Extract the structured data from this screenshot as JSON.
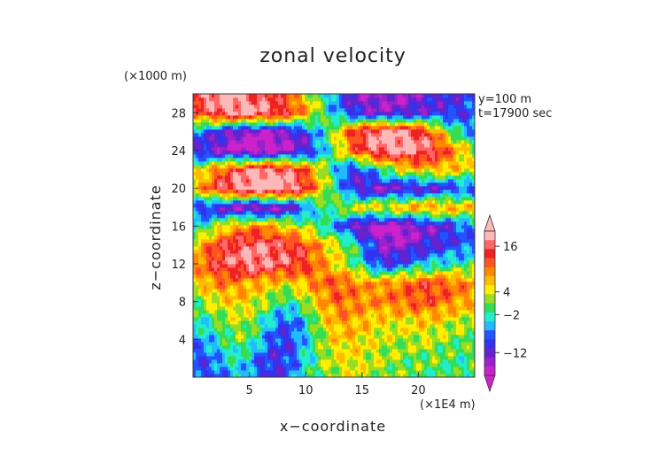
{
  "chart_data": {
    "type": "heatmap",
    "title": "zonal velocity",
    "xlabel": "x−coordinate",
    "ylabel": "z−coordinate",
    "x_unit": "(×1E4 m)",
    "y_unit": "(×1000 m)",
    "annotations": [
      "y=100  m",
      "t=17900  sec"
    ],
    "xlim": [
      0,
      25
    ],
    "ylim": [
      0,
      30
    ],
    "x_ticks": [
      5,
      10,
      15,
      20
    ],
    "y_ticks": [
      4,
      8,
      12,
      16,
      20,
      24,
      28
    ],
    "colorbar": {
      "tick_labels": [
        "16",
        "4",
        "−2",
        "−12"
      ],
      "tick_values": [
        16,
        4,
        -2,
        -12
      ],
      "extend": "both",
      "colors": [
        "#cc22cc",
        "#9922cc",
        "#6622cc",
        "#3333ee",
        "#2255ff",
        "#22bbff",
        "#22eecc",
        "#33dd55",
        "#99dd22",
        "#ffee00",
        "#ffbb00",
        "#ff8800",
        "#ff5522",
        "#ee2222",
        "#ff6666",
        "#ffb8b8"
      ]
    },
    "z_by_height": [
      {
        "z": 0,
        "row": [
          -9,
          -9,
          -8,
          -6,
          -4,
          -6,
          -9,
          -10,
          -9,
          -6,
          -3,
          0,
          2,
          3,
          4,
          3,
          2,
          1,
          1,
          0,
          0,
          0,
          0,
          -1,
          -1,
          0
        ]
      },
      {
        "z": 2,
        "row": [
          -8,
          -8,
          -6,
          -4,
          -2,
          -4,
          -8,
          -10,
          -10,
          -7,
          -3,
          0,
          3,
          4,
          5,
          4,
          3,
          2,
          2,
          1,
          1,
          1,
          0,
          0,
          -1,
          0
        ]
      },
      {
        "z": 4,
        "row": [
          -6,
          -5,
          -3,
          -1,
          1,
          0,
          -4,
          -8,
          -10,
          -8,
          -4,
          0,
          4,
          6,
          6,
          5,
          4,
          3,
          3,
          2,
          3,
          3,
          2,
          1,
          0,
          1
        ]
      },
      {
        "z": 6,
        "row": [
          -3,
          -2,
          0,
          2,
          3,
          2,
          -1,
          -5,
          -8,
          -7,
          -3,
          2,
          6,
          8,
          8,
          7,
          6,
          5,
          5,
          5,
          6,
          6,
          5,
          4,
          3,
          3
        ]
      },
      {
        "z": 8,
        "row": [
          1,
          2,
          4,
          5,
          6,
          5,
          3,
          1,
          -2,
          -1,
          2,
          6,
          9,
          11,
          10,
          9,
          9,
          10,
          10,
          11,
          12,
          12,
          11,
          9,
          8,
          7
        ]
      },
      {
        "z": 10,
        "row": [
          5,
          7,
          9,
          10,
          9,
          8,
          7,
          6,
          5,
          6,
          8,
          10,
          11,
          12,
          10,
          9,
          8,
          9,
          10,
          11,
          12,
          13,
          12,
          11,
          10,
          9
        ]
      },
      {
        "z": 12,
        "row": [
          8,
          11,
          14,
          16,
          17,
          18,
          18,
          17,
          16,
          15,
          13,
          10,
          7,
          4,
          1,
          -3,
          -8,
          -10,
          -9,
          -7,
          -5,
          -4,
          -3,
          -2,
          -2,
          -1
        ]
      },
      {
        "z": 14,
        "row": [
          6,
          9,
          13,
          15,
          16,
          17,
          17,
          16,
          15,
          14,
          12,
          9,
          6,
          3,
          0,
          -5,
          -10,
          -14,
          -15,
          -14,
          -12,
          -11,
          -10,
          -9,
          -8,
          -7
        ]
      },
      {
        "z": 16,
        "row": [
          -4,
          -2,
          2,
          6,
          8,
          9,
          9,
          8,
          6,
          4,
          2,
          0,
          -4,
          -8,
          -12,
          -15,
          -17,
          -18,
          -17,
          -16,
          -14,
          -13,
          -12,
          -10,
          -8,
          -6
        ]
      },
      {
        "z": 18,
        "row": [
          -8,
          -10,
          -12,
          -14,
          -15,
          -16,
          -16,
          -16,
          -14,
          -12,
          -8,
          -4,
          0,
          2,
          4,
          5,
          6,
          6,
          7,
          8,
          8,
          9,
          9,
          8,
          7,
          6
        ]
      },
      {
        "z": 20,
        "row": [
          6,
          10,
          14,
          17,
          19,
          20,
          21,
          21,
          20,
          18,
          14,
          8,
          2,
          -4,
          -10,
          -13,
          -14,
          -14,
          -13,
          -13,
          -12,
          -12,
          -11,
          -10,
          -9,
          -8
        ]
      },
      {
        "z": 22,
        "row": [
          2,
          5,
          9,
          13,
          15,
          17,
          18,
          18,
          17,
          15,
          11,
          6,
          0,
          -6,
          -10,
          -8,
          -4,
          0,
          3,
          5,
          6,
          7,
          7,
          6,
          5,
          4
        ]
      },
      {
        "z": 24,
        "row": [
          -10,
          -12,
          -14,
          -16,
          -17,
          -18,
          -18,
          -17,
          -16,
          -14,
          -12,
          -8,
          -2,
          4,
          10,
          14,
          17,
          18,
          19,
          19,
          18,
          17,
          14,
          10,
          6,
          2
        ]
      },
      {
        "z": 26,
        "row": [
          -6,
          -8,
          -10,
          -12,
          -14,
          -15,
          -16,
          -15,
          -14,
          -12,
          -9,
          -5,
          0,
          6,
          12,
          16,
          18,
          19,
          19,
          18,
          16,
          12,
          6,
          0,
          -4,
          -6
        ]
      },
      {
        "z": 28,
        "row": [
          12,
          14,
          16,
          18,
          19,
          19,
          18,
          17,
          15,
          12,
          8,
          3,
          -2,
          -6,
          -10,
          -12,
          -13,
          -13,
          -13,
          -12,
          -12,
          -11,
          -10,
          -10,
          -9,
          -8
        ]
      },
      {
        "z": 30,
        "row": [
          16,
          18,
          19,
          19,
          18,
          17,
          16,
          14,
          12,
          9,
          5,
          0,
          -4,
          -8,
          -12,
          -14,
          -15,
          -15,
          -15,
          -14,
          -13,
          -12,
          -11,
          -10,
          -9,
          -8
        ]
      }
    ]
  }
}
